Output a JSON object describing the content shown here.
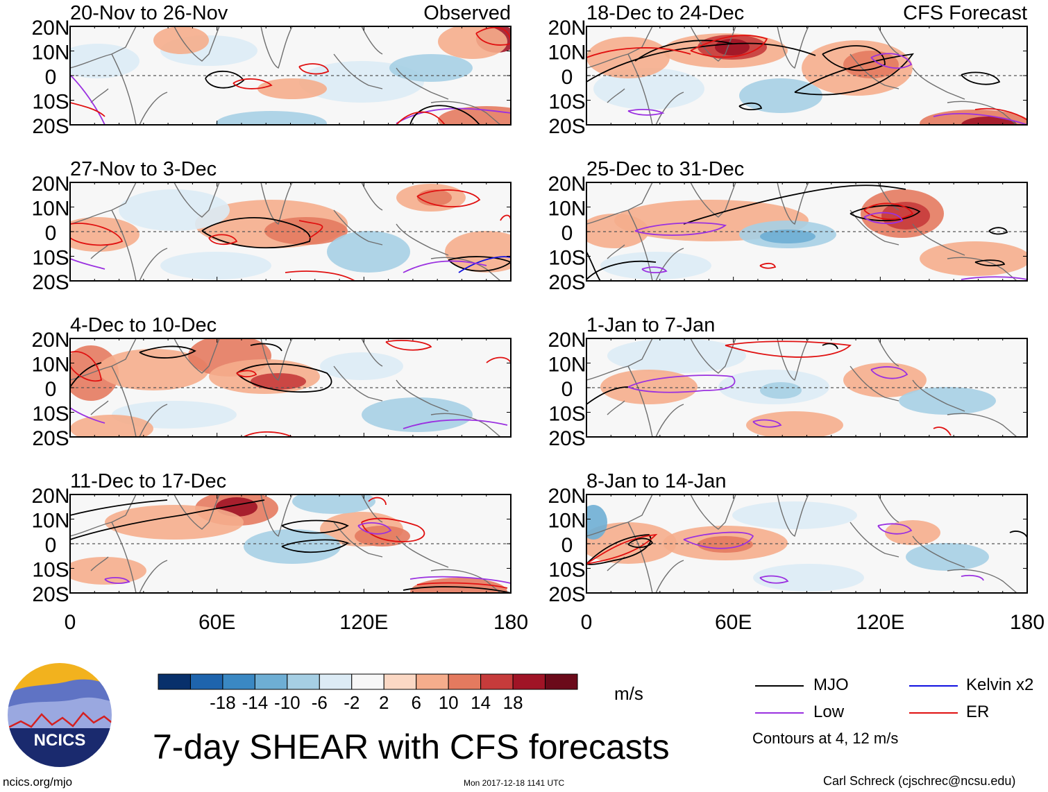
{
  "title": "7-day SHEAR with CFS forecasts",
  "units": "m/s",
  "legend": {
    "items": [
      {
        "label": "MJO",
        "color": "#000000"
      },
      {
        "label": "Low",
        "color": "#9a30e0"
      },
      {
        "label": "Kelvin x2",
        "color": "#1010e0"
      },
      {
        "label": "ER",
        "color": "#e01010"
      }
    ],
    "contours_note": "Contours at 4, 12 m/s"
  },
  "colorbar": {
    "colors": [
      "#08306b",
      "#1e64ad",
      "#3a88c3",
      "#6eaed4",
      "#a6cfe4",
      "#dcebf5",
      "#f7f7f7",
      "#fbd8c4",
      "#f5ad8c",
      "#e47a5f",
      "#c63b3b",
      "#a01426",
      "#6b0a1a"
    ],
    "tick_labels": [
      "-18",
      "-14",
      "-10",
      "-6",
      "-2",
      "2",
      "6",
      "10",
      "14",
      "18"
    ]
  },
  "credits": {
    "left": "ncics.org/mjo",
    "middle": "Mon 2017-12-18 1141 UTC",
    "right": "Carl Schreck (cjschrec@ncsu.edu)"
  },
  "logo_text": "NCICS",
  "chart_data": [
    {
      "type": "heatmap",
      "title": "20-Nov to 26-Nov",
      "label": "Observed",
      "xlabel": "",
      "ylabel": ""
    },
    {
      "type": "heatmap",
      "title": "18-Dec to 24-Dec",
      "label": "CFS Forecast",
      "xlabel": "",
      "ylabel": ""
    },
    {
      "type": "heatmap",
      "title": "27-Nov to 3-Dec",
      "label": "",
      "xlabel": "",
      "ylabel": ""
    },
    {
      "type": "heatmap",
      "title": "25-Dec to 31-Dec",
      "label": "",
      "xlabel": "",
      "ylabel": ""
    },
    {
      "type": "heatmap",
      "title": "4-Dec to 10-Dec",
      "label": "",
      "xlabel": "",
      "ylabel": ""
    },
    {
      "type": "heatmap",
      "title": "1-Jan to 7-Jan",
      "label": "",
      "xlabel": "",
      "ylabel": ""
    },
    {
      "type": "heatmap",
      "title": "11-Dec to 17-Dec",
      "label": "",
      "xlabel": "",
      "ylabel": ""
    },
    {
      "type": "heatmap",
      "title": "8-Jan to 14-Jan",
      "label": "",
      "xlabel": "",
      "ylabel": ""
    }
  ],
  "axes": {
    "x_range": [
      0,
      180
    ],
    "y_range": [
      -20,
      20
    ],
    "y_ticks": [
      {
        "value": 20,
        "label": "20N"
      },
      {
        "value": 10,
        "label": "10N"
      },
      {
        "value": 0,
        "label": "0"
      },
      {
        "value": -10,
        "label": "10S"
      },
      {
        "value": -20,
        "label": "20S"
      }
    ],
    "x_ticks": [
      {
        "value": 0,
        "label": "0"
      },
      {
        "value": 60,
        "label": "60E"
      },
      {
        "value": 120,
        "label": "120E"
      },
      {
        "value": 180,
        "label": "180"
      }
    ]
  }
}
